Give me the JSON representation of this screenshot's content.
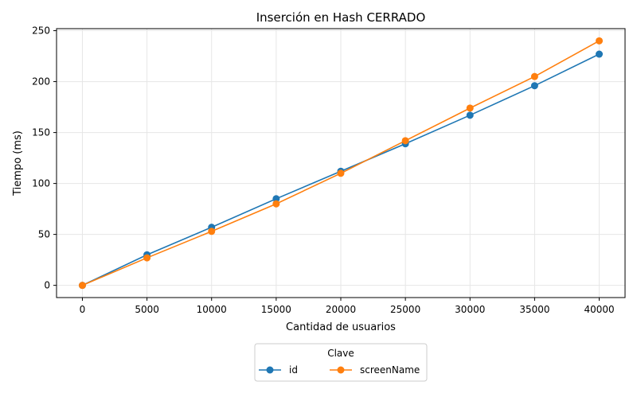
{
  "chart_data": {
    "type": "line",
    "title": "Inserción en Hash CERRADO",
    "xlabel": "Cantidad de usuarios",
    "ylabel": "Tiempo (ms)",
    "x": [
      0,
      5000,
      10000,
      15000,
      20000,
      25000,
      30000,
      35000,
      40000
    ],
    "xlim": [
      -2000,
      42000
    ],
    "ylim": [
      -12,
      252
    ],
    "xticks": [
      0,
      5000,
      10000,
      15000,
      20000,
      25000,
      30000,
      35000,
      40000
    ],
    "yticks": [
      0,
      50,
      100,
      150,
      200,
      250
    ],
    "grid": true,
    "legend": {
      "title": "Clave",
      "placement": "bottom-center, outside plot"
    },
    "series": [
      {
        "name": "id",
        "color": "#1f77b4",
        "marker": "circle",
        "values": [
          0,
          30,
          57,
          85,
          112,
          139,
          167,
          196,
          227
        ]
      },
      {
        "name": "screenName",
        "color": "#ff7f0e",
        "marker": "circle",
        "values": [
          0,
          27,
          53,
          80,
          110,
          142,
          174,
          205,
          240
        ]
      }
    ]
  }
}
